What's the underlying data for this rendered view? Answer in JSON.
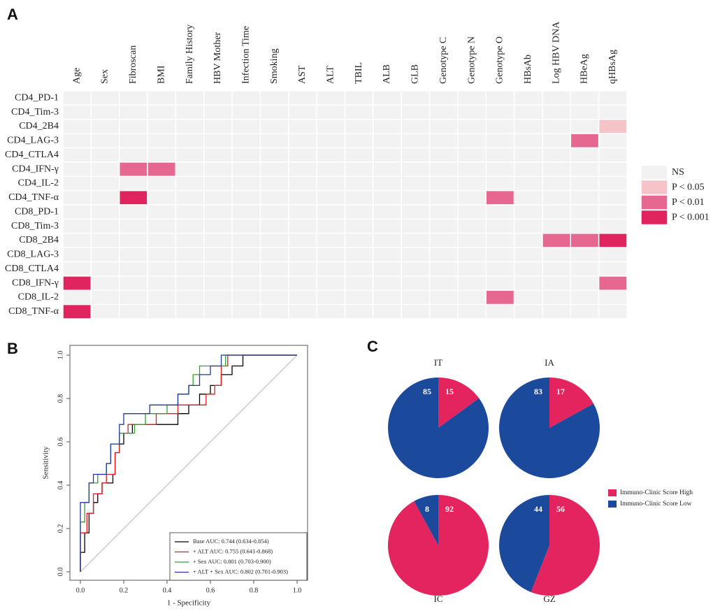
{
  "chart_data": [
    {
      "type": "heatmap",
      "panel_label": "A",
      "x": [
        "Age",
        "Sex",
        "Fibroscan",
        "BMI",
        "Family History",
        "HBV Mother",
        "Infection Time",
        "Smoking",
        "AST",
        "ALT",
        "TBIL",
        "ALB",
        "GLB",
        "Genotype C",
        "Genotype N",
        "Genotype O",
        "HBsAb",
        "Log HBV DNA",
        "HBeAg",
        "qHBsAg"
      ],
      "y": [
        "CD4_PD-1",
        "CD4_Tim-3",
        "CD4_2B4",
        "CD4_LAG-3",
        "CD4_CTLA4",
        "CD4_IFN-γ",
        "CD4_IL-2",
        "CD4_TNF-α",
        "CD8_PD-1",
        "CD8_Tim-3",
        "CD8_2B4",
        "CD8_LAG-3",
        "CD8_CTLA4",
        "CD8_IFN-γ",
        "CD8_IL-2",
        "CD8_TNF-α"
      ],
      "levels": [
        {
          "name": "NS",
          "color": "#f2f2f2"
        },
        {
          "name": "P < 0.05",
          "color": "#f6c3c8"
        },
        {
          "name": "P < 0.01",
          "color": "#e6678f"
        },
        {
          "name": "P < 0.001",
          "color": "#e0245e"
        }
      ],
      "values": [
        [
          0,
          0,
          0,
          0,
          0,
          0,
          0,
          0,
          0,
          0,
          0,
          0,
          0,
          0,
          0,
          0,
          0,
          0,
          0,
          0
        ],
        [
          0,
          0,
          0,
          0,
          0,
          0,
          0,
          0,
          0,
          0,
          0,
          0,
          0,
          0,
          0,
          0,
          0,
          0,
          0,
          0
        ],
        [
          0,
          0,
          0,
          0,
          0,
          0,
          0,
          0,
          0,
          0,
          0,
          0,
          0,
          0,
          0,
          0,
          0,
          0,
          0,
          1
        ],
        [
          0,
          0,
          0,
          0,
          0,
          0,
          0,
          0,
          0,
          0,
          0,
          0,
          0,
          0,
          0,
          0,
          0,
          0,
          2,
          0
        ],
        [
          0,
          0,
          0,
          0,
          0,
          0,
          0,
          0,
          0,
          0,
          0,
          0,
          0,
          0,
          0,
          0,
          0,
          0,
          0,
          0
        ],
        [
          0,
          0,
          2,
          2,
          0,
          0,
          0,
          0,
          0,
          0,
          0,
          0,
          0,
          0,
          0,
          0,
          0,
          0,
          0,
          0
        ],
        [
          0,
          0,
          0,
          0,
          0,
          0,
          0,
          0,
          0,
          0,
          0,
          0,
          0,
          0,
          0,
          0,
          0,
          0,
          0,
          0
        ],
        [
          0,
          0,
          3,
          0,
          0,
          0,
          0,
          0,
          0,
          0,
          0,
          0,
          0,
          0,
          0,
          2,
          0,
          0,
          0,
          0
        ],
        [
          0,
          0,
          0,
          0,
          0,
          0,
          0,
          0,
          0,
          0,
          0,
          0,
          0,
          0,
          0,
          0,
          0,
          0,
          0,
          0
        ],
        [
          0,
          0,
          0,
          0,
          0,
          0,
          0,
          0,
          0,
          0,
          0,
          0,
          0,
          0,
          0,
          0,
          0,
          0,
          0,
          0
        ],
        [
          0,
          0,
          0,
          0,
          0,
          0,
          0,
          0,
          0,
          0,
          0,
          0,
          0,
          0,
          0,
          0,
          0,
          2,
          2,
          3
        ],
        [
          0,
          0,
          0,
          0,
          0,
          0,
          0,
          0,
          0,
          0,
          0,
          0,
          0,
          0,
          0,
          0,
          0,
          0,
          0,
          0
        ],
        [
          0,
          0,
          0,
          0,
          0,
          0,
          0,
          0,
          0,
          0,
          0,
          0,
          0,
          0,
          0,
          0,
          0,
          0,
          0,
          0
        ],
        [
          3,
          0,
          0,
          0,
          0,
          0,
          0,
          0,
          0,
          0,
          0,
          0,
          0,
          0,
          0,
          0,
          0,
          0,
          0,
          2
        ],
        [
          0,
          0,
          0,
          0,
          0,
          0,
          0,
          0,
          0,
          0,
          0,
          0,
          0,
          0,
          0,
          2,
          0,
          0,
          0,
          0
        ],
        [
          3,
          0,
          0,
          0,
          0,
          0,
          0,
          0,
          0,
          0,
          0,
          0,
          0,
          0,
          0,
          0,
          0,
          0,
          0,
          0
        ]
      ]
    },
    {
      "type": "line",
      "step": true,
      "panel_label": "B",
      "x_label": "1 - Specificity",
      "y_label": "Sensitivity",
      "xlim": [
        0,
        1
      ],
      "ylim": [
        0,
        1
      ],
      "xticks": [
        {
          "value": 0,
          "label": "0.0"
        },
        0.2,
        0.4,
        0.6,
        0.8,
        {
          "value": 1,
          "label": "1.0"
        }
      ],
      "yticks": [
        {
          "value": 0,
          "label": "0.0"
        },
        0.2,
        0.4,
        0.6,
        0.8,
        {
          "value": 1,
          "label": "1.0"
        }
      ],
      "series": [
        {
          "name": "Base AUC: 0.744 (0.634-0.854)",
          "color": "#000000",
          "x": [
            0,
            0,
            0.02,
            0.02,
            0.04,
            0.04,
            0.06,
            0.08,
            0.1,
            0.15,
            0.16,
            0.18,
            0.2,
            0.24,
            0.45,
            0.45,
            0.5,
            0.55,
            0.6,
            0.65,
            0.7,
            0.75,
            1
          ],
          "values": [
            0,
            0.09,
            0.14,
            0.18,
            0.23,
            0.27,
            0.32,
            0.36,
            0.41,
            0.45,
            0.55,
            0.59,
            0.64,
            0.68,
            0.68,
            0.73,
            0.77,
            0.82,
            0.86,
            0.91,
            0.95,
            1,
            1
          ]
        },
        {
          "name": "+ ALT AUC: 0.755 (0.641-0.868)",
          "color": "#e41a1c",
          "x": [
            0,
            0,
            0.03,
            0.06,
            0.1,
            0.12,
            0.16,
            0.18,
            0.22,
            0.35,
            0.45,
            0.58,
            0.62,
            0.65,
            0.68,
            1
          ],
          "values": [
            0,
            0.18,
            0.27,
            0.36,
            0.41,
            0.45,
            0.55,
            0.64,
            0.68,
            0.73,
            0.77,
            0.82,
            0.86,
            0.95,
            1,
            1
          ]
        },
        {
          "name": "+ Sex AUC: 0.801 (0.703-0.900)",
          "color": "#33a02c",
          "x": [
            0,
            0,
            0.02,
            0.04,
            0.08,
            0.12,
            0.14,
            0.18,
            0.25,
            0.3,
            0.4,
            0.45,
            0.5,
            0.52,
            0.55,
            0.67,
            1
          ],
          "values": [
            0,
            0.23,
            0.32,
            0.41,
            0.45,
            0.5,
            0.59,
            0.64,
            0.68,
            0.73,
            0.77,
            0.82,
            0.86,
            0.91,
            0.95,
            1,
            1
          ]
        },
        {
          "name": "+ ALT + Sex AUC: 0.802 (0.701-0.903)",
          "color": "#1f3a9c",
          "x": [
            0,
            0,
            0.04,
            0.06,
            0.12,
            0.14,
            0.18,
            0.2,
            0.32,
            0.45,
            0.5,
            0.55,
            0.6,
            0.65,
            1
          ],
          "values": [
            0,
            0.32,
            0.41,
            0.45,
            0.5,
            0.59,
            0.68,
            0.73,
            0.77,
            0.82,
            0.86,
            0.91,
            0.95,
            1,
            1
          ]
        }
      ]
    },
    {
      "type": "pie",
      "panel_label": "C",
      "categories": [
        "Immuno-Clinic Score High",
        "Immuno-Clinic Score Low"
      ],
      "colors": [
        "#e3245f",
        "#1b4a9c"
      ],
      "pies": [
        {
          "title": "IT",
          "values": [
            15,
            85
          ]
        },
        {
          "title": "IA",
          "values": [
            17,
            83
          ]
        },
        {
          "title": "IC",
          "values": [
            92,
            8
          ]
        },
        {
          "title": "GZ",
          "values": [
            56,
            44
          ]
        }
      ]
    }
  ]
}
